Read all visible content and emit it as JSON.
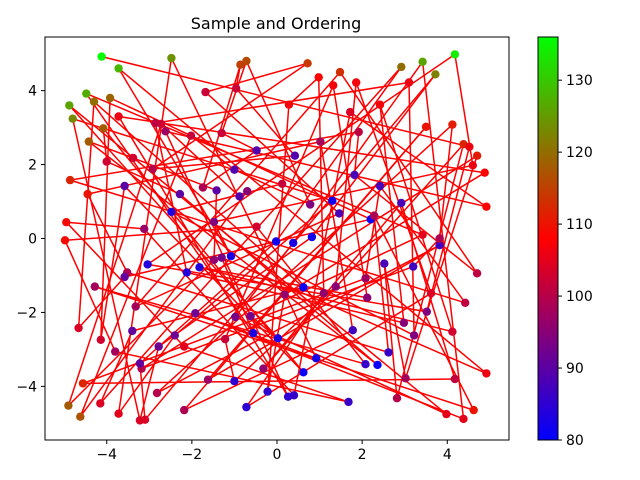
{
  "chart_data": {
    "type": "scatter",
    "title": "Sample and Ordering",
    "xlabel": "",
    "ylabel": "",
    "xlim": [
      -5.45,
      5.45
    ],
    "ylim": [
      -5.45,
      5.45
    ],
    "xticks": [
      -4,
      -2,
      0,
      2,
      4
    ],
    "yticks": [
      -4,
      -2,
      0,
      2,
      4
    ],
    "grid": false,
    "path_color": "#ff0000",
    "path_visits_every_point": true,
    "colorbar": {
      "label": "",
      "range": [
        80,
        136
      ],
      "ticks": [
        80,
        90,
        100,
        110,
        120,
        130
      ],
      "colors": [
        "#0000ff",
        "#ff0000",
        "#00ff00"
      ]
    },
    "points": [
      [
        -4.12,
        4.92,
        136
      ],
      [
        4.18,
        4.98,
        134
      ],
      [
        -3.72,
        4.6,
        128
      ],
      [
        -4.48,
        3.92,
        127
      ],
      [
        -4.88,
        3.6,
        126
      ],
      [
        3.42,
        4.78,
        126
      ],
      [
        -2.48,
        4.88,
        124
      ],
      [
        -4.8,
        3.24,
        123
      ],
      [
        3.72,
        4.44,
        122
      ],
      [
        2.92,
        4.64,
        120
      ],
      [
        -4.3,
        3.7,
        120
      ],
      [
        -3.92,
        3.8,
        119
      ],
      [
        -4.08,
        2.98,
        118
      ],
      [
        -4.42,
        2.62,
        118
      ],
      [
        -4.9,
        -4.52,
        118
      ],
      [
        -4.62,
        -4.82,
        117
      ],
      [
        -0.72,
        4.8,
        116
      ],
      [
        -0.86,
        4.7,
        115
      ],
      [
        0.72,
        4.74,
        114
      ],
      [
        1.48,
        4.5,
        113
      ],
      [
        -4.86,
        1.58,
        112
      ],
      [
        -4.56,
        -3.92,
        112
      ],
      [
        4.38,
        2.55,
        112
      ],
      [
        4.7,
        2.24,
        111
      ],
      [
        4.12,
        3.08,
        111
      ],
      [
        3.5,
        3.02,
        110
      ],
      [
        -4.45,
        1.2,
        110
      ],
      [
        4.62,
        -4.64,
        110
      ],
      [
        -4.98,
        -0.05,
        109
      ],
      [
        -4.95,
        0.44,
        109
      ],
      [
        4.92,
        0.86,
        108
      ],
      [
        4.88,
        1.78,
        108
      ],
      [
        0.98,
        4.36,
        108
      ],
      [
        1.86,
        4.22,
        107
      ],
      [
        1.32,
        4.14,
        107
      ],
      [
        2.42,
        3.62,
        107
      ],
      [
        3.1,
        4.22,
        106
      ],
      [
        4.52,
        2.48,
        106
      ],
      [
        4.6,
        1.98,
        106
      ],
      [
        4.92,
        -3.65,
        106
      ],
      [
        3.42,
        0.1,
        105
      ],
      [
        3.98,
        -4.75,
        105
      ],
      [
        4.38,
        -4.88,
        105
      ],
      [
        -3.72,
        -4.74,
        105
      ],
      [
        -3.22,
        -4.92,
        104
      ],
      [
        -3.1,
        -4.9,
        104
      ],
      [
        -4.15,
        -4.46,
        104
      ],
      [
        -4.66,
        -2.42,
        104
      ],
      [
        -4.14,
        -2.74,
        103
      ],
      [
        -4.0,
        2.08,
        103
      ],
      [
        -3.38,
        2.18,
        103
      ],
      [
        -2.72,
        3.1,
        103
      ],
      [
        -2.02,
        2.78,
        102
      ],
      [
        -1.3,
        2.85,
        102
      ],
      [
        -0.96,
        4.06,
        102
      ],
      [
        -1.68,
        3.96,
        102
      ],
      [
        4.7,
        -0.94,
        101
      ],
      [
        4.42,
        -1.74,
        101
      ],
      [
        4.18,
        -3.8,
        101
      ],
      [
        2.82,
        -4.32,
        100
      ],
      [
        -3.18,
        -3.52,
        100
      ],
      [
        -2.82,
        -4.18,
        100
      ],
      [
        -2.18,
        -4.64,
        99
      ],
      [
        -3.52,
        -0.92,
        99
      ],
      [
        -4.28,
        -1.3,
        98
      ],
      [
        -3.8,
        -3.06,
        98
      ],
      [
        -3.12,
        0.26,
        97
      ],
      [
        -2.62,
        2.9,
        97
      ],
      [
        0.18,
        -1.52,
        96
      ],
      [
        1.1,
        -1.48,
        96
      ],
      [
        1.38,
        -1.3,
        95
      ],
      [
        2.12,
        -1.6,
        95
      ],
      [
        2.98,
        -2.28,
        95
      ],
      [
        3.22,
        -2.62,
        94
      ],
      [
        3.52,
        -1.98,
        94
      ],
      [
        -1.48,
        0.45,
        94
      ],
      [
        -1.3,
        -0.52,
        93
      ],
      [
        -0.62,
        -2.1,
        93
      ],
      [
        -0.98,
        -2.12,
        93
      ],
      [
        -1.92,
        -2.02,
        92
      ],
      [
        -2.4,
        -2.62,
        92
      ],
      [
        -2.78,
        -2.92,
        92
      ],
      [
        -3.22,
        -3.38,
        91
      ],
      [
        -3.4,
        -2.5,
        91
      ],
      [
        -3.58,
        -1.04,
        91
      ],
      [
        -3.58,
        1.42,
        90
      ],
      [
        -2.28,
        1.2,
        90
      ],
      [
        -1.42,
        1.3,
        90
      ],
      [
        -0.88,
        1.14,
        89
      ],
      [
        -1.0,
        1.86,
        89
      ],
      [
        -0.48,
        2.38,
        89
      ],
      [
        0.42,
        2.24,
        89
      ],
      [
        1.46,
        0.68,
        88
      ],
      [
        1.82,
        1.72,
        88
      ],
      [
        2.42,
        1.42,
        88
      ],
      [
        2.92,
        0.96,
        88
      ],
      [
        2.52,
        -0.68,
        88
      ],
      [
        3.2,
        -0.76,
        87
      ],
      [
        3.82,
        -0.18,
        87
      ],
      [
        1.78,
        -2.48,
        87
      ],
      [
        2.62,
        -3.08,
        86
      ],
      [
        2.08,
        -3.4,
        86
      ],
      [
        1.68,
        -4.42,
        86
      ],
      [
        0.4,
        -4.24,
        86
      ],
      [
        0.26,
        -4.28,
        85
      ],
      [
        -0.22,
        -4.14,
        85
      ],
      [
        -0.72,
        -4.56,
        85
      ],
      [
        -1.0,
        -3.86,
        85
      ],
      [
        -1.82,
        -0.78,
        84
      ],
      [
        -2.12,
        -0.92,
        84
      ],
      [
        -2.48,
        0.72,
        84
      ],
      [
        -3.04,
        -0.7,
        84
      ],
      [
        -1.08,
        -0.48,
        83
      ],
      [
        -0.56,
        -2.56,
        83
      ],
      [
        0.02,
        -2.7,
        83
      ],
      [
        0.38,
        -0.12,
        83
      ],
      [
        0.92,
        -3.24,
        82
      ],
      [
        1.3,
        1.02,
        82
      ],
      [
        0.82,
        0.04,
        82
      ],
      [
        -0.02,
        -0.08,
        82
      ],
      [
        0.62,
        -1.32,
        81
      ],
      [
        2.2,
        0.52,
        81
      ],
      [
        0.62,
        -3.62,
        81
      ],
      [
        2.36,
        -3.42,
        81
      ],
      [
        -1.48,
        -0.58,
        96
      ],
      [
        -0.7,
        1.28,
        95
      ],
      [
        0.78,
        0.92,
        94
      ],
      [
        -1.74,
        1.38,
        99
      ],
      [
        -2.92,
        1.88,
        100
      ],
      [
        -3.32,
        -1.84,
        98
      ],
      [
        1.92,
        2.88,
        101
      ],
      [
        2.08,
        -1.08,
        97
      ],
      [
        -0.32,
        -3.52,
        96
      ],
      [
        3.02,
        -3.78,
        98
      ],
      [
        3.82,
        0.0,
        99
      ],
      [
        -1.62,
        -3.82,
        97
      ],
      [
        1.02,
        2.62,
        98
      ],
      [
        2.28,
        0.62,
        99
      ],
      [
        -0.48,
        0.32,
        103
      ],
      [
        -2.18,
        -2.92,
        105
      ],
      [
        1.72,
        3.42,
        104
      ],
      [
        -3.72,
        3.3,
        106
      ],
      [
        0.28,
        3.62,
        107
      ],
      [
        3.62,
        -1.48,
        104
      ],
      [
        -1.22,
        -2.72,
        102
      ],
      [
        4.12,
        -2.52,
        103
      ],
      [
        -2.86,
        3.12,
        101
      ],
      [
        0.12,
        1.48,
        102
      ]
    ]
  }
}
